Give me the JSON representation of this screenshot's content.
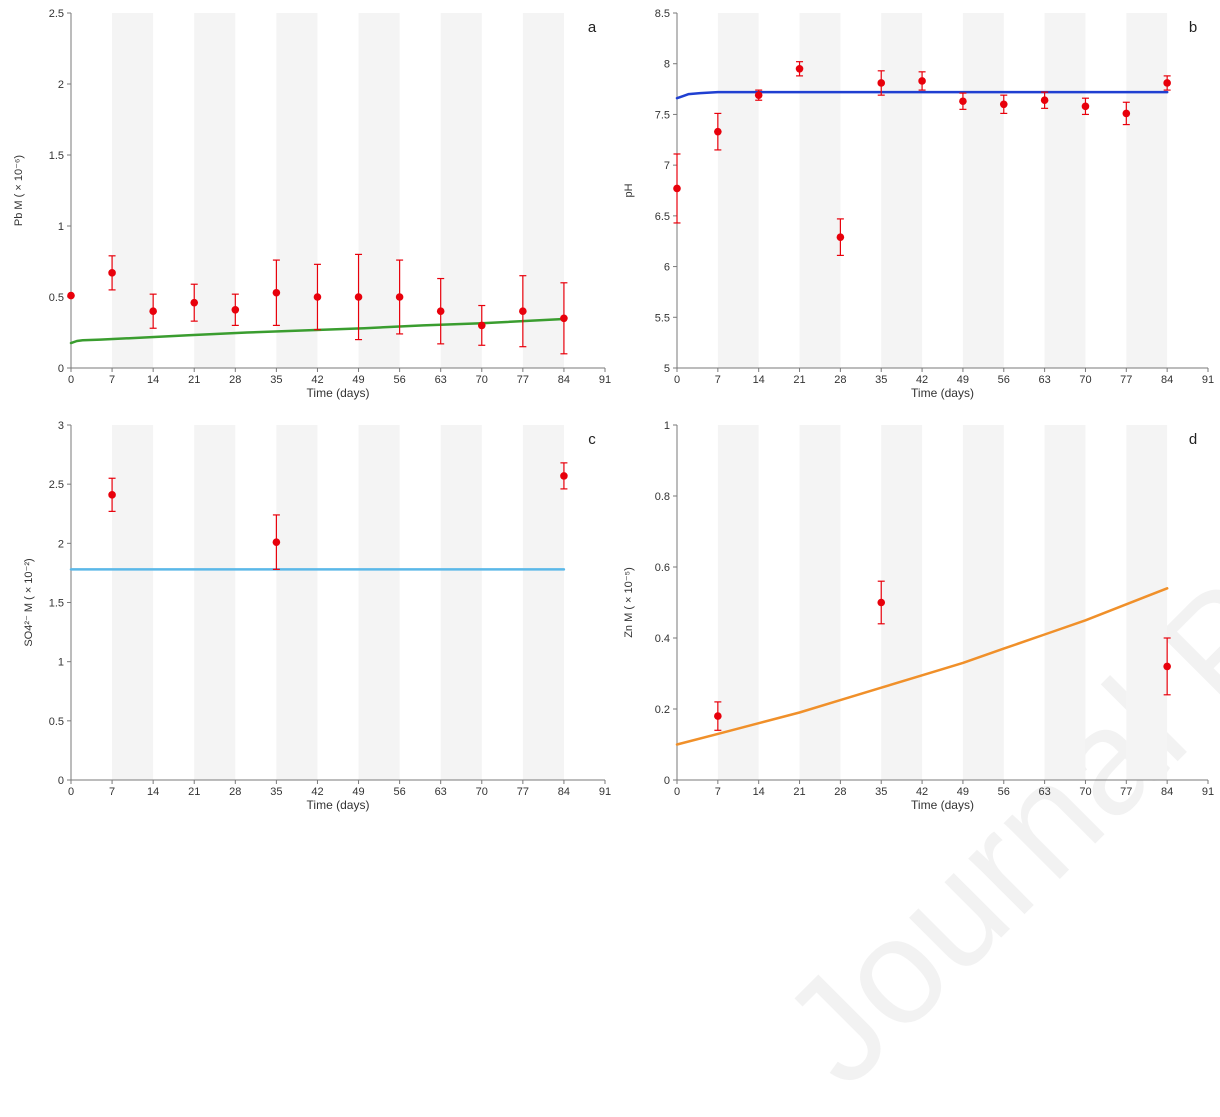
{
  "watermark": "Journal Pre-proof",
  "chart_data": [
    {
      "type": "scatter",
      "panel_label": "a",
      "xlabel": "Time (days)",
      "ylabel": "Pb M ( × 10⁻⁶)",
      "xlim": [
        0,
        91
      ],
      "ylim": [
        0,
        2.5
      ],
      "xticks": [
        0,
        7,
        14,
        21,
        28,
        35,
        42,
        49,
        56,
        63,
        70,
        77,
        84,
        91
      ],
      "yticks": [
        0,
        0.5,
        1,
        1.5,
        2,
        2.5
      ],
      "ytick_labels": [
        "0",
        "0.5",
        "1",
        "1.5",
        "2",
        "2.5"
      ],
      "shaded_bands": [
        [
          7,
          14
        ],
        [
          21,
          28
        ],
        [
          35,
          42
        ],
        [
          49,
          56
        ],
        [
          63,
          70
        ],
        [
          77,
          84
        ]
      ],
      "points": {
        "color": "#e8000b",
        "x": [
          0,
          7,
          14,
          21,
          28,
          35,
          42,
          49,
          56,
          63,
          70,
          77,
          84
        ],
        "y": [
          0.51,
          0.67,
          0.4,
          0.46,
          0.41,
          0.53,
          0.5,
          0.5,
          0.5,
          0.4,
          0.3,
          0.4,
          0.35
        ],
        "err": [
          0.0,
          0.12,
          0.12,
          0.13,
          0.11,
          0.23,
          0.23,
          0.3,
          0.26,
          0.23,
          0.14,
          0.25,
          0.25
        ]
      },
      "model_line": {
        "color": "#3a9d2f",
        "x": [
          0,
          1,
          2,
          5,
          10,
          20,
          30,
          40,
          50,
          60,
          70,
          84
        ],
        "y": [
          0.175,
          0.19,
          0.195,
          0.2,
          0.21,
          0.23,
          0.25,
          0.265,
          0.28,
          0.3,
          0.315,
          0.345
        ]
      }
    },
    {
      "type": "scatter",
      "panel_label": "b",
      "xlabel": "Time (days)",
      "ylabel": "pH",
      "xlim": [
        0,
        91
      ],
      "ylim": [
        5,
        8.5
      ],
      "xticks": [
        0,
        7,
        14,
        21,
        28,
        35,
        42,
        49,
        56,
        63,
        70,
        77,
        84,
        91
      ],
      "yticks": [
        5,
        5.5,
        6,
        6.5,
        7,
        7.5,
        8,
        8.5
      ],
      "ytick_labels": [
        "5",
        "5.5",
        "6",
        "6.5",
        "7",
        "7.5",
        "8",
        "8.5"
      ],
      "shaded_bands": [
        [
          7,
          14
        ],
        [
          21,
          28
        ],
        [
          35,
          42
        ],
        [
          49,
          56
        ],
        [
          63,
          70
        ],
        [
          77,
          84
        ]
      ],
      "points": {
        "color": "#e8000b",
        "x": [
          0,
          7,
          14,
          21,
          28,
          35,
          42,
          49,
          56,
          63,
          70,
          77,
          84
        ],
        "y": [
          6.77,
          7.33,
          7.69,
          7.95,
          6.29,
          7.81,
          7.83,
          7.63,
          7.6,
          7.64,
          7.58,
          7.51,
          7.81
        ],
        "err": [
          0.34,
          0.18,
          0.05,
          0.07,
          0.18,
          0.12,
          0.09,
          0.08,
          0.09,
          0.08,
          0.08,
          0.11,
          0.07
        ]
      },
      "model_line": {
        "color": "#1f3fd1",
        "x": [
          0,
          1,
          2,
          4,
          7,
          14,
          84
        ],
        "y": [
          7.66,
          7.68,
          7.7,
          7.71,
          7.72,
          7.72,
          7.72
        ]
      }
    },
    {
      "type": "scatter",
      "panel_label": "c",
      "xlabel": "Time (days)",
      "ylabel": "SO4²⁻ M ( × 10⁻²)",
      "xlim": [
        0,
        91
      ],
      "ylim": [
        0,
        3
      ],
      "xticks": [
        0,
        7,
        14,
        21,
        28,
        35,
        42,
        49,
        56,
        63,
        70,
        77,
        84,
        91
      ],
      "yticks": [
        0,
        0.5,
        1,
        1.5,
        2,
        2.5,
        3
      ],
      "ytick_labels": [
        "0",
        "0.5",
        "1",
        "1.5",
        "2",
        "2.5",
        "3"
      ],
      "shaded_bands": [
        [
          7,
          14
        ],
        [
          21,
          28
        ],
        [
          35,
          42
        ],
        [
          49,
          56
        ],
        [
          63,
          70
        ],
        [
          77,
          84
        ]
      ],
      "points": {
        "color": "#e8000b",
        "x": [
          7,
          35,
          84
        ],
        "y": [
          2.41,
          2.01,
          2.57
        ],
        "err": [
          0.14,
          0.23,
          0.11
        ]
      },
      "model_line": {
        "color": "#5bb8e8",
        "x": [
          0,
          84
        ],
        "y": [
          1.78,
          1.78
        ]
      }
    },
    {
      "type": "scatter",
      "panel_label": "d",
      "xlabel": "Time (days)",
      "ylabel": "Zn M ( × 10⁻⁵)",
      "xlim": [
        0,
        91
      ],
      "ylim": [
        0,
        1
      ],
      "xticks": [
        0,
        7,
        14,
        21,
        28,
        35,
        42,
        49,
        56,
        63,
        70,
        77,
        84,
        91
      ],
      "yticks": [
        0,
        0.2,
        0.4,
        0.6,
        0.8,
        1
      ],
      "ytick_labels": [
        "0",
        "0.2",
        "0.4",
        "0.6",
        "0.8",
        "1"
      ],
      "shaded_bands": [
        [
          7,
          14
        ],
        [
          21,
          28
        ],
        [
          35,
          42
        ],
        [
          49,
          56
        ],
        [
          63,
          70
        ],
        [
          77,
          84
        ]
      ],
      "points": {
        "color": "#e8000b",
        "x": [
          7,
          35,
          84
        ],
        "y": [
          0.18,
          0.5,
          0.32
        ],
        "err": [
          0.04,
          0.06,
          0.08
        ]
      },
      "model_line": {
        "color": "#f0902a",
        "x": [
          0,
          7,
          14,
          21,
          28,
          35,
          42,
          49,
          56,
          63,
          70,
          77,
          84
        ],
        "y": [
          0.1,
          0.13,
          0.16,
          0.19,
          0.225,
          0.26,
          0.295,
          0.33,
          0.37,
          0.41,
          0.45,
          0.495,
          0.54
        ]
      }
    }
  ]
}
